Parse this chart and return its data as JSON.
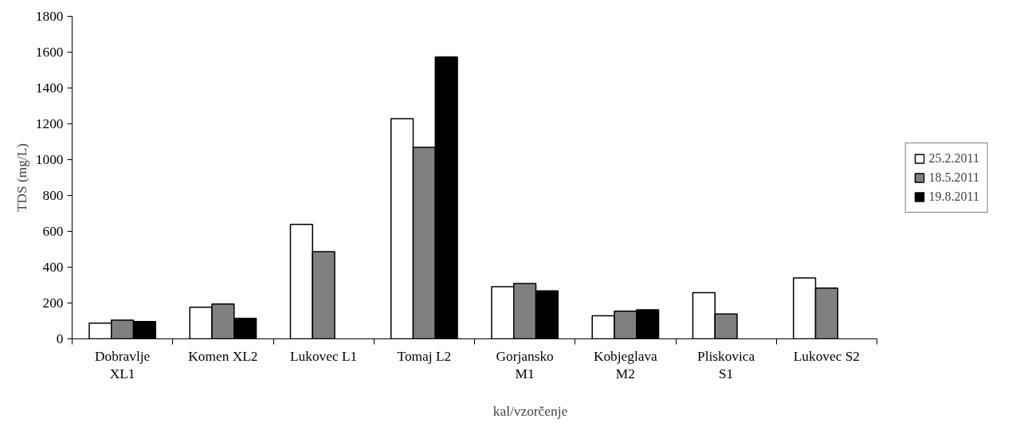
{
  "chart_data": {
    "type": "bar",
    "xlabel": "kal/vzorčenje",
    "ylabel": "TDS (mg/L)",
    "categories": [
      "Dobravlje XL1",
      "Komen XL2",
      "Lukovec L1",
      "Tomaj L2",
      "Gorjansko M1",
      "Kobjeglava M2",
      "Pliskovica S1",
      "Lukovec S2"
    ],
    "series": [
      {
        "name": "25.2.2011",
        "color": "#ffffff",
        "values": [
          88,
          177,
          639,
          1229,
          291,
          129,
          258,
          340
        ]
      },
      {
        "name": "18.5.2011",
        "color": "#808080",
        "values": [
          105,
          195,
          487,
          1069,
          309,
          154,
          139,
          283
        ]
      },
      {
        "name": "19.8.2011",
        "color": "#000000",
        "values": [
          97,
          114,
          null,
          1573,
          268,
          162,
          null,
          null
        ]
      }
    ],
    "ylim": [
      0,
      1800
    ],
    "yticks": [
      0,
      200,
      400,
      600,
      800,
      1000,
      1200,
      1400,
      1600,
      1800
    ],
    "grid": false,
    "legend": "right"
  }
}
